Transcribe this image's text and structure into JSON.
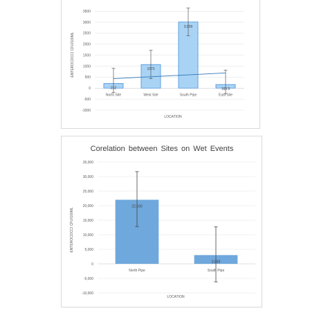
{
  "chart_data": [
    {
      "type": "bar",
      "title": "",
      "xlabel": "LOCATION",
      "ylabel": "ENTEROCOCCI CFU/100ML",
      "categories": [
        "North Site",
        "West Site",
        "South Pipe",
        "East Site"
      ],
      "values": [
        212,
        1073,
        3009,
        163.5
      ],
      "data_labels": [
        "212",
        "1073",
        "3,009",
        "163.5"
      ],
      "error_bars": [
        [
          -200,
          900
        ],
        [
          430,
          1720
        ],
        [
          2380,
          3640
        ],
        [
          -250,
          820
        ]
      ],
      "trendline": {
        "type": "linear",
        "from": 430,
        "to": 690
      },
      "yticks": [
        "-1000",
        "-500",
        "0",
        "500",
        "1000",
        "1500",
        "2000",
        "2500",
        "3000",
        "3500"
      ],
      "ylim": [
        -1000,
        3600
      ],
      "grid": true,
      "colors": {
        "bar_fill": "#a9d3f5",
        "bar_stroke": "#4a90d9",
        "trend": "#2e75b6"
      }
    },
    {
      "type": "bar",
      "title": "Corelation between Sites on Wet Events",
      "xlabel": "LOCATION",
      "ylabel": "ENTEROCOCCI CFU/100ML",
      "categories": [
        "North Pipe",
        "South Pipe"
      ],
      "values": [
        22030,
        3009
      ],
      "data_labels": [
        "22,030",
        "3,009"
      ],
      "error_bars": [
        [
          12800,
          31700
        ],
        [
          -6200,
          12700
        ]
      ],
      "yticks": [
        "-10,000",
        "-5,000",
        "0",
        "5,000",
        "10,000",
        "15,000",
        "20,000",
        "25,000",
        "30,000",
        "35,000"
      ],
      "ylim": [
        -10000,
        35000
      ],
      "grid": true,
      "colors": {
        "bar_fill": "#6fa8dc"
      }
    }
  ]
}
